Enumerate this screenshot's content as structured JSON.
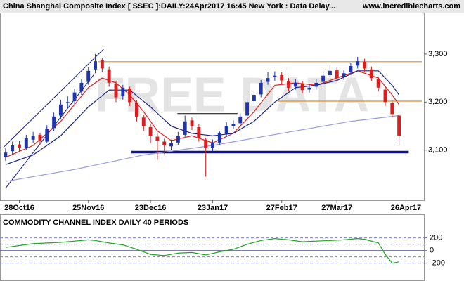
{
  "chart_data": [
    {
      "type": "candlestick",
      "title": "China Shanghai Composite Index [ SSEC ]:DAILY:24Apr2017 16:45 New York : Data Delay...",
      "source": "www.incrediblecharts.com",
      "watermark": "FREE DATA",
      "up_color": "#1f35b0",
      "down_color": "#d81e1e",
      "xlim": [
        -0.8,
        60.6
      ],
      "ylim": [
        2996,
        3386
      ],
      "xticks": [
        {
          "value": 2,
          "label": "28Oct16"
        },
        {
          "value": 12,
          "label": "25Nov16"
        },
        {
          "value": 21,
          "label": "23Dec16"
        },
        {
          "value": 30,
          "label": "23Jan17"
        },
        {
          "value": 40,
          "label": "27Feb17"
        },
        {
          "value": 48,
          "label": "27Mar17"
        },
        {
          "value": 58,
          "label": "26Apr17"
        }
      ],
      "yticks": [
        {
          "value": 3100,
          "label": "3,100"
        },
        {
          "value": 3200,
          "label": "3,200"
        },
        {
          "value": 3300,
          "label": "3,300"
        }
      ],
      "candles": [
        [
          3085,
          3105,
          3078,
          3095
        ],
        [
          3098,
          3118,
          3090,
          3110
        ],
        [
          3112,
          3120,
          3098,
          3105
        ],
        [
          3104,
          3132,
          3100,
          3125
        ],
        [
          3122,
          3138,
          3115,
          3130
        ],
        [
          3132,
          3136,
          3112,
          3120
        ],
        [
          3118,
          3152,
          3115,
          3145
        ],
        [
          3146,
          3178,
          3140,
          3170
        ],
        [
          3172,
          3205,
          3165,
          3195
        ],
        [
          3198,
          3212,
          3188,
          3200
        ],
        [
          3202,
          3228,
          3196,
          3220
        ],
        [
          3222,
          3248,
          3215,
          3240
        ],
        [
          3242,
          3272,
          3236,
          3265
        ],
        [
          3268,
          3300,
          3260,
          3285
        ],
        [
          3287,
          3292,
          3262,
          3270
        ],
        [
          3268,
          3274,
          3232,
          3240
        ],
        [
          3238,
          3244,
          3200,
          3210
        ],
        [
          3212,
          3236,
          3205,
          3230
        ],
        [
          3228,
          3232,
          3192,
          3200
        ],
        [
          3198,
          3204,
          3160,
          3170
        ],
        [
          3168,
          3174,
          3140,
          3150
        ],
        [
          3148,
          3154,
          3115,
          3130
        ],
        [
          3128,
          3134,
          3080,
          3120
        ],
        [
          3118,
          3124,
          3092,
          3110
        ],
        [
          3108,
          3122,
          3100,
          3115
        ],
        [
          3116,
          3138,
          3110,
          3130
        ],
        [
          3132,
          3172,
          3128,
          3160
        ],
        [
          3162,
          3168,
          3142,
          3150
        ],
        [
          3148,
          3154,
          3118,
          3125
        ],
        [
          3122,
          3126,
          3045,
          3105
        ],
        [
          3104,
          3122,
          3098,
          3115
        ],
        [
          3116,
          3140,
          3110,
          3135
        ],
        [
          3134,
          3158,
          3128,
          3150
        ],
        [
          3150,
          3162,
          3144,
          3155
        ],
        [
          3156,
          3176,
          3150,
          3170
        ],
        [
          3172,
          3206,
          3166,
          3200
        ],
        [
          3202,
          3222,
          3195,
          3215
        ],
        [
          3216,
          3246,
          3210,
          3240
        ],
        [
          3242,
          3262,
          3236,
          3250
        ],
        [
          3252,
          3264,
          3244,
          3255
        ],
        [
          3256,
          3262,
          3238,
          3245
        ],
        [
          3244,
          3250,
          3222,
          3230
        ],
        [
          3232,
          3248,
          3226,
          3240
        ],
        [
          3238,
          3244,
          3218,
          3225
        ],
        [
          3226,
          3238,
          3220,
          3230
        ],
        [
          3232,
          3248,
          3226,
          3240
        ],
        [
          3242,
          3262,
          3236,
          3255
        ],
        [
          3256,
          3274,
          3250,
          3265
        ],
        [
          3266,
          3272,
          3244,
          3250
        ],
        [
          3252,
          3266,
          3246,
          3260
        ],
        [
          3262,
          3282,
          3256,
          3275
        ],
        [
          3276,
          3294,
          3270,
          3285
        ],
        [
          3284,
          3290,
          3262,
          3270
        ],
        [
          3268,
          3274,
          3244,
          3250
        ],
        [
          3248,
          3252,
          3222,
          3230
        ],
        [
          3226,
          3232,
          3192,
          3200
        ],
        [
          3198,
          3204,
          3168,
          3175
        ],
        [
          3172,
          3176,
          3110,
          3130
        ]
      ],
      "series": [
        {
          "color": "#e02020",
          "x": [
            0,
            4,
            8,
            12,
            14,
            16,
            18,
            20,
            22,
            24,
            27,
            30,
            33,
            36,
            39,
            42,
            45,
            48,
            51,
            54,
            56,
            57
          ],
          "values": [
            3085,
            3110,
            3160,
            3230,
            3250,
            3240,
            3215,
            3180,
            3140,
            3120,
            3130,
            3115,
            3135,
            3180,
            3235,
            3240,
            3235,
            3250,
            3265,
            3250,
            3215,
            3195
          ]
        },
        {
          "color": "#1a237e",
          "x": [
            0,
            4,
            8,
            12,
            15,
            18,
            21,
            24,
            27,
            30,
            33,
            36,
            39,
            42,
            45,
            48,
            51,
            54,
            56,
            57
          ],
          "values": [
            3070,
            3090,
            3130,
            3190,
            3225,
            3225,
            3190,
            3150,
            3135,
            3130,
            3135,
            3160,
            3200,
            3230,
            3235,
            3245,
            3265,
            3265,
            3235,
            3215
          ]
        },
        {
          "color": "#9a9ae0",
          "x": [
            0,
            10,
            20,
            30,
            40,
            50,
            57
          ],
          "values": [
            3035,
            3060,
            3090,
            3110,
            3135,
            3160,
            3172
          ]
        }
      ],
      "lines": [
        {
          "color": "#e08a2a",
          "width": 1.2,
          "x": [
            13.4,
            60.3
          ],
          "y": [
            3284,
            3284
          ]
        },
        {
          "color": "#e08a2a",
          "width": 1.2,
          "x": [
            39.4,
            60.3
          ],
          "y": [
            3202,
            3202
          ]
        },
        {
          "color": "#10148a",
          "width": 3.5,
          "x": [
            18.2,
            58.4
          ],
          "y": [
            3096,
            3096
          ]
        },
        {
          "color": "#000000",
          "width": 1,
          "x": [
            24.9,
            33.6
          ],
          "y": [
            3176,
            3176
          ]
        },
        {
          "color": "#10148a",
          "width": 1,
          "x": [
            -0.3,
            14.2
          ],
          "y": [
            3106,
            3310
          ]
        },
        {
          "color": "#10148a",
          "width": 1,
          "x": [
            0,
            12.9
          ],
          "y": [
            3021,
            3259
          ]
        }
      ]
    },
    {
      "type": "line",
      "title": "COMMODITY CHANNEL INDEX DAILY 40 PERIODS",
      "xlim": [
        -0.8,
        60.6
      ],
      "ylim": [
        -460,
        330
      ],
      "yticks": [
        200,
        0,
        -200
      ],
      "levels": [
        200,
        100,
        0,
        -100,
        -200
      ],
      "series": [
        {
          "color": "#1fa51f",
          "x": [
            0,
            2,
            4,
            6,
            8,
            10,
            12,
            13,
            15,
            17,
            19,
            21,
            23,
            25,
            27,
            29,
            31,
            33,
            35,
            37,
            39,
            41,
            43,
            45,
            47,
            49,
            51,
            52,
            54,
            55,
            56,
            57
          ],
          "values": [
            50,
            80,
            110,
            120,
            130,
            150,
            170,
            160,
            120,
            90,
            20,
            -60,
            -80,
            -40,
            -30,
            -70,
            -20,
            20,
            100,
            160,
            190,
            170,
            140,
            150,
            160,
            170,
            190,
            180,
            120,
            -60,
            -200,
            -180
          ]
        }
      ]
    }
  ]
}
